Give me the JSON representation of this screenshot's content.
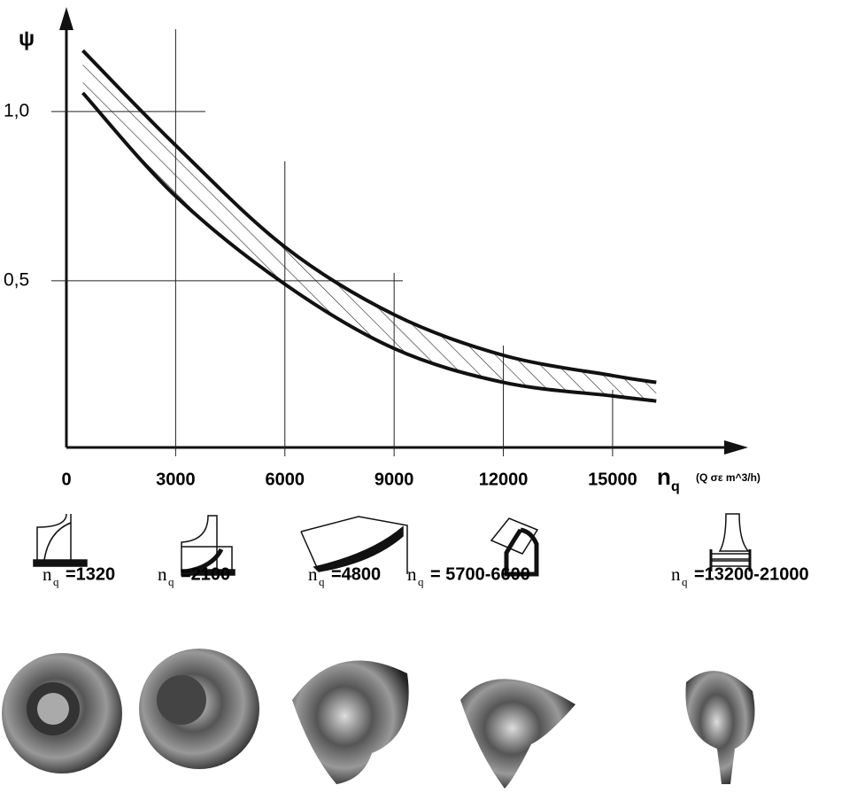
{
  "chart_data": {
    "type": "line",
    "y_label": "ψ",
    "x_label": "n",
    "x_label_subscript": "q",
    "x_unit": "(Q σε m^3/h)",
    "x": [
      450,
      3000,
      6000,
      9000,
      12000,
      15000,
      16200
    ],
    "series": [
      {
        "values": [
          1.18,
          0.9,
          0.6,
          0.4,
          0.28,
          0.22,
          0.2
        ],
        "color": "#111111"
      },
      {
        "values": [
          1.055,
          0.75,
          0.49,
          0.3,
          0.2,
          0.16,
          0.145
        ],
        "color": "#111111"
      }
    ],
    "hatched_band": true,
    "xlim": [
      0,
      18600
    ],
    "ylim": [
      0,
      1.29
    ],
    "xticks": [
      0,
      3000,
      6000,
      9000,
      12000,
      15000
    ],
    "yticks": [
      {
        "value": 0.5,
        "label": "0,5"
      },
      {
        "value": 1,
        "label": "1,0"
      }
    ],
    "grid": true,
    "impellers": [
      {
        "symbol": "n",
        "subscript": "q",
        "value": "=1320"
      },
      {
        "symbol": "n",
        "subscript": "q",
        "value": "=2100"
      },
      {
        "symbol": "n",
        "subscript": "q",
        "value": "=4800"
      },
      {
        "symbol": "n",
        "subscript": "q",
        "value": "= 5700-6600"
      },
      {
        "symbol": "n",
        "subscript": "q",
        "value": "=13200-21000"
      }
    ]
  }
}
